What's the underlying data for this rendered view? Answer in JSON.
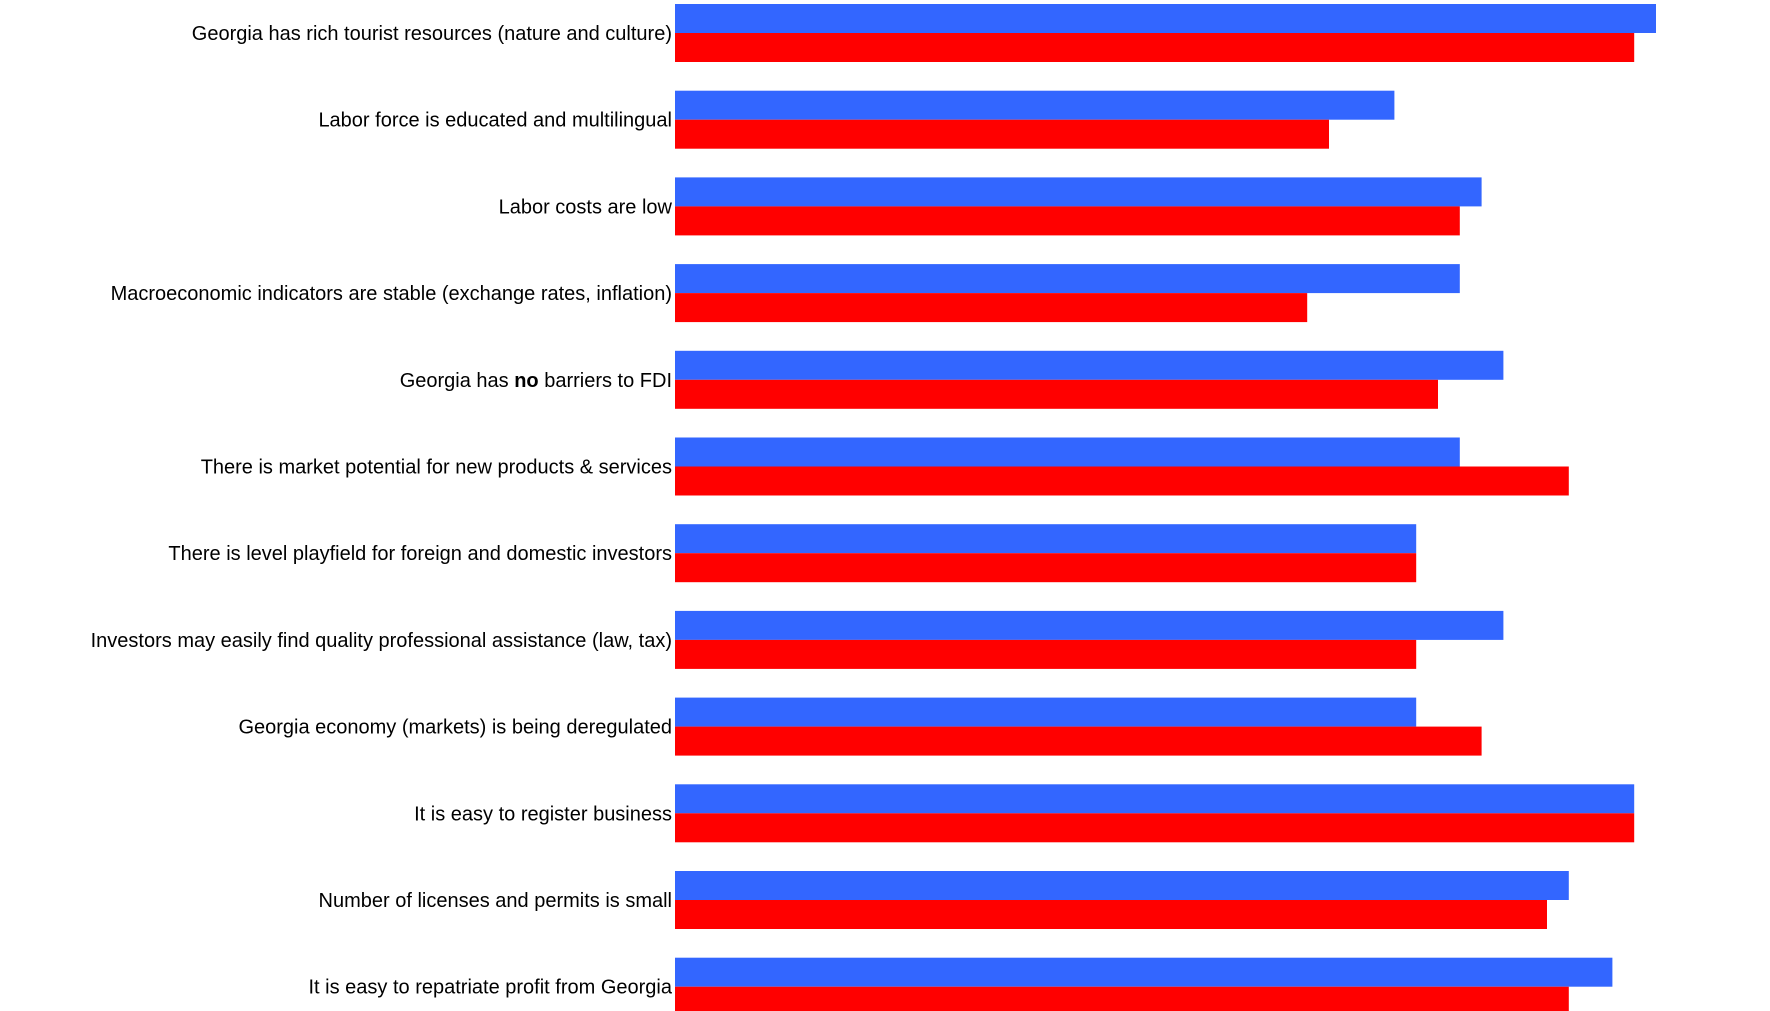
{
  "chart_data": {
    "type": "bar",
    "orientation": "horizontal",
    "title": "",
    "xlabel": "",
    "ylabel": "",
    "grid": false,
    "legend": "none",
    "xlim": [
      0,
      100
    ],
    "categories": [
      {
        "parts": [
          {
            "text": "Georgia has rich tourist resources (nature and culture)",
            "bold": false
          }
        ]
      },
      {
        "parts": [
          {
            "text": "Labor force is educated and multilingual",
            "bold": false
          }
        ]
      },
      {
        "parts": [
          {
            "text": "Labor costs are low",
            "bold": false
          }
        ]
      },
      {
        "parts": [
          {
            "text": "Macroeconomic indicators are stable (exchange rates, inflation)",
            "bold": false
          }
        ]
      },
      {
        "parts": [
          {
            "text": "Georgia has ",
            "bold": false
          },
          {
            "text": "no",
            "bold": true
          },
          {
            "text": " barriers to FDI",
            "bold": false
          }
        ]
      },
      {
        "parts": [
          {
            "text": "There is market potential for new products & services",
            "bold": false
          }
        ]
      },
      {
        "parts": [
          {
            "text": "There is level playfield for foreign and domestic investors",
            "bold": false
          }
        ]
      },
      {
        "parts": [
          {
            "text": "Investors may easily find quality professional assistance (law, tax)",
            "bold": false
          }
        ]
      },
      {
        "parts": [
          {
            "text": "Georgia economy (markets) is being deregulated",
            "bold": false
          }
        ]
      },
      {
        "parts": [
          {
            "text": "It is easy to register business",
            "bold": false
          }
        ]
      },
      {
        "parts": [
          {
            "text": "Number of licenses and permits is small",
            "bold": false
          }
        ]
      },
      {
        "parts": [
          {
            "text": "It is easy to repatriate profit from Georgia",
            "bold": false
          }
        ]
      }
    ],
    "series": [
      {
        "color": "#3366FF",
        "values": [
          90,
          66,
          74,
          72,
          76,
          72,
          68,
          76,
          68,
          88,
          82,
          86
        ]
      },
      {
        "color": "#FF0000",
        "values": [
          88,
          60,
          72,
          58,
          70,
          82,
          68,
          68,
          74,
          88,
          80,
          82
        ]
      }
    ]
  }
}
